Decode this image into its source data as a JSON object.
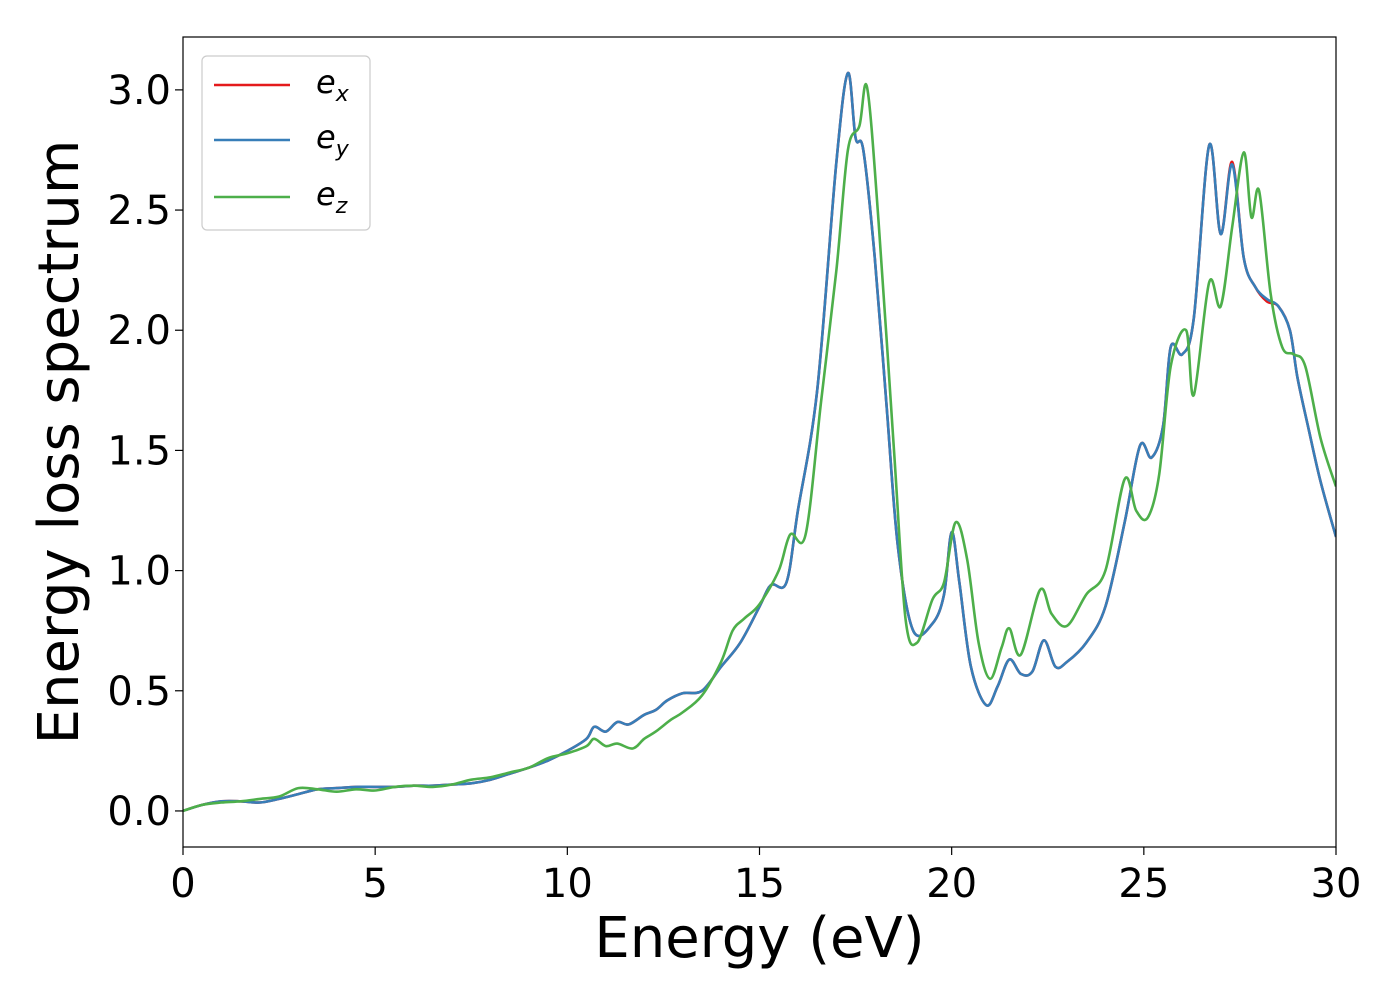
{
  "chart_data": {
    "type": "line",
    "xlabel": "Energy (eV)",
    "ylabel": "Energy loss spectrum",
    "xlim": [
      0,
      30
    ],
    "ylim": [
      -0.15,
      3.22
    ],
    "xticks": [
      0,
      5,
      10,
      15,
      20,
      25,
      30
    ],
    "yticks": [
      0.0,
      0.5,
      1.0,
      1.5,
      2.0,
      2.5,
      3.0
    ],
    "xtick_labels": [
      "0",
      "5",
      "10",
      "15",
      "20",
      "25",
      "30"
    ],
    "ytick_labels": [
      "0.0",
      "0.5",
      "1.0",
      "1.5",
      "2.0",
      "2.5",
      "3.0"
    ],
    "grid": false,
    "legend_position": "top-left",
    "series": [
      {
        "name": "e_x",
        "legend_base": "e",
        "legend_sub": "x",
        "color": "#e41a1c",
        "points": [
          [
            0,
            0.0
          ],
          [
            0.5,
            0.025
          ],
          [
            1.0,
            0.04
          ],
          [
            1.5,
            0.04
          ],
          [
            2.0,
            0.035
          ],
          [
            2.5,
            0.05
          ],
          [
            3.0,
            0.07
          ],
          [
            3.5,
            0.09
          ],
          [
            4.0,
            0.095
          ],
          [
            4.5,
            0.1
          ],
          [
            5.0,
            0.1
          ],
          [
            5.5,
            0.1
          ],
          [
            6.0,
            0.105
          ],
          [
            6.5,
            0.105
          ],
          [
            7.0,
            0.11
          ],
          [
            7.5,
            0.115
          ],
          [
            8.0,
            0.13
          ],
          [
            8.5,
            0.155
          ],
          [
            9.0,
            0.18
          ],
          [
            9.5,
            0.21
          ],
          [
            10.0,
            0.25
          ],
          [
            10.5,
            0.3
          ],
          [
            10.7,
            0.35
          ],
          [
            11.0,
            0.33
          ],
          [
            11.3,
            0.37
          ],
          [
            11.6,
            0.36
          ],
          [
            12.0,
            0.4
          ],
          [
            12.3,
            0.42
          ],
          [
            12.6,
            0.46
          ],
          [
            13.0,
            0.49
          ],
          [
            13.5,
            0.5
          ],
          [
            14.0,
            0.6
          ],
          [
            14.5,
            0.7
          ],
          [
            15.0,
            0.85
          ],
          [
            15.3,
            0.94
          ],
          [
            15.7,
            0.95
          ],
          [
            16.0,
            1.25
          ],
          [
            16.5,
            1.75
          ],
          [
            17.0,
            2.7
          ],
          [
            17.3,
            3.07
          ],
          [
            17.5,
            2.8
          ],
          [
            17.7,
            2.75
          ],
          [
            18.0,
            2.3
          ],
          [
            18.3,
            1.7
          ],
          [
            18.6,
            1.1
          ],
          [
            19.0,
            0.75
          ],
          [
            19.5,
            0.78
          ],
          [
            19.8,
            0.9
          ],
          [
            20.0,
            1.16
          ],
          [
            20.2,
            0.95
          ],
          [
            20.5,
            0.6
          ],
          [
            20.9,
            0.44
          ],
          [
            21.2,
            0.52
          ],
          [
            21.5,
            0.63
          ],
          [
            21.8,
            0.57
          ],
          [
            22.1,
            0.58
          ],
          [
            22.4,
            0.71
          ],
          [
            22.7,
            0.6
          ],
          [
            23.0,
            0.62
          ],
          [
            23.5,
            0.7
          ],
          [
            24.0,
            0.85
          ],
          [
            24.5,
            1.2
          ],
          [
            24.9,
            1.52
          ],
          [
            25.2,
            1.47
          ],
          [
            25.5,
            1.6
          ],
          [
            25.7,
            1.93
          ],
          [
            26.0,
            1.9
          ],
          [
            26.3,
            2.05
          ],
          [
            26.7,
            2.77
          ],
          [
            27.0,
            2.4
          ],
          [
            27.3,
            2.7
          ],
          [
            27.6,
            2.3
          ],
          [
            27.9,
            2.18
          ],
          [
            28.2,
            2.12
          ],
          [
            28.5,
            2.1
          ],
          [
            28.8,
            2.0
          ],
          [
            29.0,
            1.8
          ],
          [
            29.3,
            1.58
          ],
          [
            29.6,
            1.37
          ],
          [
            30.0,
            1.14
          ]
        ]
      },
      {
        "name": "e_y",
        "legend_base": "e",
        "legend_sub": "y",
        "color": "#377eb8",
        "points": [
          [
            0,
            0.0
          ],
          [
            0.5,
            0.025
          ],
          [
            1.0,
            0.04
          ],
          [
            1.5,
            0.04
          ],
          [
            2.0,
            0.035
          ],
          [
            2.5,
            0.05
          ],
          [
            3.0,
            0.07
          ],
          [
            3.5,
            0.09
          ],
          [
            4.0,
            0.095
          ],
          [
            4.5,
            0.1
          ],
          [
            5.0,
            0.1
          ],
          [
            5.5,
            0.1
          ],
          [
            6.0,
            0.105
          ],
          [
            6.5,
            0.105
          ],
          [
            7.0,
            0.11
          ],
          [
            7.5,
            0.115
          ],
          [
            8.0,
            0.13
          ],
          [
            8.5,
            0.155
          ],
          [
            9.0,
            0.18
          ],
          [
            9.5,
            0.21
          ],
          [
            10.0,
            0.25
          ],
          [
            10.5,
            0.3
          ],
          [
            10.7,
            0.35
          ],
          [
            11.0,
            0.33
          ],
          [
            11.3,
            0.37
          ],
          [
            11.6,
            0.36
          ],
          [
            12.0,
            0.4
          ],
          [
            12.3,
            0.42
          ],
          [
            12.6,
            0.46
          ],
          [
            13.0,
            0.49
          ],
          [
            13.5,
            0.5
          ],
          [
            14.0,
            0.6
          ],
          [
            14.5,
            0.7
          ],
          [
            15.0,
            0.85
          ],
          [
            15.3,
            0.94
          ],
          [
            15.7,
            0.95
          ],
          [
            16.0,
            1.25
          ],
          [
            16.5,
            1.75
          ],
          [
            17.0,
            2.7
          ],
          [
            17.3,
            3.07
          ],
          [
            17.5,
            2.8
          ],
          [
            17.7,
            2.75
          ],
          [
            18.0,
            2.3
          ],
          [
            18.3,
            1.7
          ],
          [
            18.6,
            1.1
          ],
          [
            19.0,
            0.75
          ],
          [
            19.5,
            0.78
          ],
          [
            19.8,
            0.9
          ],
          [
            20.0,
            1.16
          ],
          [
            20.2,
            0.95
          ],
          [
            20.5,
            0.6
          ],
          [
            20.9,
            0.44
          ],
          [
            21.2,
            0.52
          ],
          [
            21.5,
            0.63
          ],
          [
            21.8,
            0.57
          ],
          [
            22.1,
            0.58
          ],
          [
            22.4,
            0.71
          ],
          [
            22.7,
            0.6
          ],
          [
            23.0,
            0.62
          ],
          [
            23.5,
            0.7
          ],
          [
            24.0,
            0.85
          ],
          [
            24.5,
            1.2
          ],
          [
            24.9,
            1.52
          ],
          [
            25.2,
            1.47
          ],
          [
            25.5,
            1.6
          ],
          [
            25.7,
            1.93
          ],
          [
            26.0,
            1.9
          ],
          [
            26.3,
            2.05
          ],
          [
            26.7,
            2.77
          ],
          [
            27.0,
            2.4
          ],
          [
            27.3,
            2.69
          ],
          [
            27.6,
            2.3
          ],
          [
            27.9,
            2.18
          ],
          [
            28.2,
            2.13
          ],
          [
            28.5,
            2.1
          ],
          [
            28.8,
            2.0
          ],
          [
            29.0,
            1.8
          ],
          [
            29.3,
            1.58
          ],
          [
            29.6,
            1.37
          ],
          [
            30.0,
            1.14
          ]
        ]
      },
      {
        "name": "e_z",
        "legend_base": "e",
        "legend_sub": "z",
        "color": "#4daf4a",
        "points": [
          [
            0,
            0.0
          ],
          [
            0.5,
            0.025
          ],
          [
            1.0,
            0.035
          ],
          [
            1.5,
            0.04
          ],
          [
            2.0,
            0.05
          ],
          [
            2.5,
            0.06
          ],
          [
            3.0,
            0.095
          ],
          [
            3.5,
            0.09
          ],
          [
            4.0,
            0.08
          ],
          [
            4.5,
            0.09
          ],
          [
            5.0,
            0.085
          ],
          [
            5.5,
            0.1
          ],
          [
            6.0,
            0.105
          ],
          [
            6.5,
            0.1
          ],
          [
            7.0,
            0.11
          ],
          [
            7.5,
            0.13
          ],
          [
            8.0,
            0.14
          ],
          [
            8.5,
            0.16
          ],
          [
            9.0,
            0.18
          ],
          [
            9.5,
            0.22
          ],
          [
            10.0,
            0.24
          ],
          [
            10.5,
            0.27
          ],
          [
            10.7,
            0.3
          ],
          [
            11.0,
            0.27
          ],
          [
            11.3,
            0.28
          ],
          [
            11.7,
            0.26
          ],
          [
            12.0,
            0.3
          ],
          [
            12.3,
            0.33
          ],
          [
            12.7,
            0.38
          ],
          [
            13.0,
            0.41
          ],
          [
            13.5,
            0.48
          ],
          [
            14.0,
            0.62
          ],
          [
            14.3,
            0.75
          ],
          [
            14.6,
            0.8
          ],
          [
            15.0,
            0.86
          ],
          [
            15.5,
            1.0
          ],
          [
            15.8,
            1.15
          ],
          [
            16.2,
            1.15
          ],
          [
            16.6,
            1.7
          ],
          [
            17.0,
            2.25
          ],
          [
            17.3,
            2.75
          ],
          [
            17.6,
            2.85
          ],
          [
            17.8,
            3.01
          ],
          [
            18.1,
            2.45
          ],
          [
            18.5,
            1.5
          ],
          [
            18.8,
            0.8
          ],
          [
            19.1,
            0.7
          ],
          [
            19.5,
            0.88
          ],
          [
            19.8,
            0.95
          ],
          [
            20.1,
            1.2
          ],
          [
            20.4,
            1.05
          ],
          [
            20.7,
            0.7
          ],
          [
            21.0,
            0.55
          ],
          [
            21.3,
            0.68
          ],
          [
            21.5,
            0.76
          ],
          [
            21.8,
            0.65
          ],
          [
            22.3,
            0.92
          ],
          [
            22.6,
            0.82
          ],
          [
            23.0,
            0.77
          ],
          [
            23.5,
            0.9
          ],
          [
            24.0,
            1.0
          ],
          [
            24.5,
            1.38
          ],
          [
            24.8,
            1.25
          ],
          [
            25.1,
            1.22
          ],
          [
            25.4,
            1.4
          ],
          [
            25.7,
            1.85
          ],
          [
            26.1,
            2.0
          ],
          [
            26.3,
            1.73
          ],
          [
            26.7,
            2.2
          ],
          [
            27.0,
            2.1
          ],
          [
            27.3,
            2.43
          ],
          [
            27.6,
            2.74
          ],
          [
            27.8,
            2.47
          ],
          [
            28.0,
            2.58
          ],
          [
            28.3,
            2.15
          ],
          [
            28.6,
            1.93
          ],
          [
            28.9,
            1.9
          ],
          [
            29.2,
            1.85
          ],
          [
            29.6,
            1.55
          ],
          [
            30.0,
            1.35
          ]
        ]
      }
    ]
  }
}
